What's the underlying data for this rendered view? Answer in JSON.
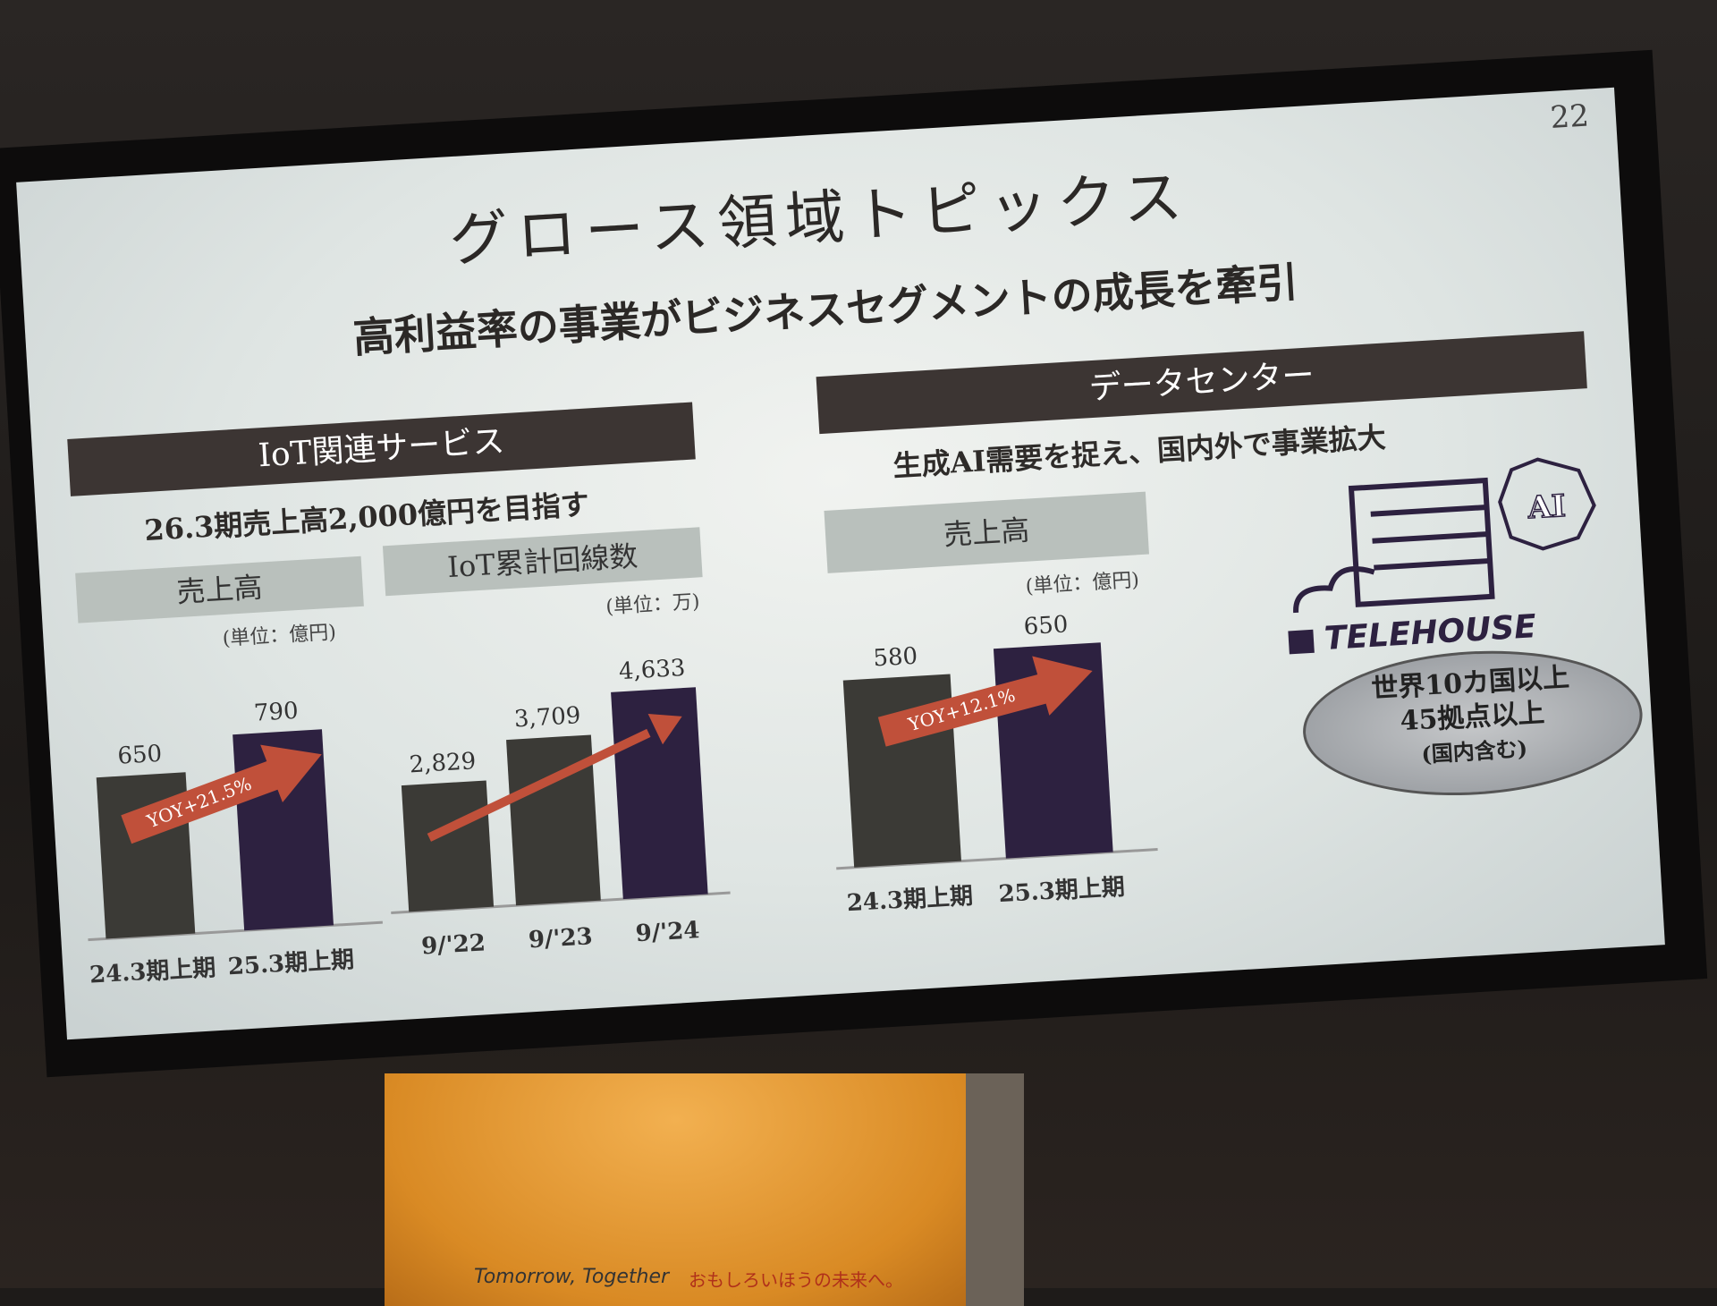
{
  "slide": {
    "page_number": "22",
    "title": "グロース領域トピックス",
    "subtitle": "高利益率の事業がビジネスセグメントの成長を牽引",
    "left": {
      "header": "IoT関連サービス",
      "target": "26.3期売上高2,000億円を目指す",
      "revenue_label": "売上高",
      "revenue_unit": "(単位：億円)",
      "lines_label": "IoT累計回線数",
      "lines_unit": "(単位：万)"
    },
    "right": {
      "header": "データセンター",
      "tagline": "生成AI需要を捉え、国内外で事業拡大",
      "revenue_label": "売上高",
      "revenue_unit": "(単位：億円)",
      "logo": "TELEHOUSE",
      "ai_badge": "AI",
      "globe_lines": [
        "世界10カ国以上",
        "45拠点以上",
        "(国内含む)"
      ]
    }
  },
  "podium": {
    "en": "Tomorrow, Together",
    "jp": "おもしろいほうの未来へ。"
  },
  "colors": {
    "bar_prev": "#3b3a36",
    "bar_current": "#2d2140",
    "arrow": "#c0503a",
    "header_bg": "#3c3533"
  },
  "chart_data": [
    {
      "type": "bar",
      "title": "売上高",
      "ylabel": "(単位：億円)",
      "categories": [
        "24.3期上期",
        "25.3期上期"
      ],
      "values": [
        650,
        790
      ],
      "annotation": "YOY+21.5%",
      "ylim": [
        0,
        900
      ]
    },
    {
      "type": "bar",
      "title": "IoT累計回線数",
      "ylabel": "(単位：万)",
      "categories": [
        "9/'22",
        "9/'23",
        "9/'24"
      ],
      "values": [
        2829,
        3709,
        4633
      ],
      "value_labels": [
        "2,829",
        "3,709",
        "4,633"
      ],
      "ylim": [
        0,
        5200
      ]
    },
    {
      "type": "bar",
      "title": "売上高",
      "ylabel": "(単位：億円)",
      "categories": [
        "24.3期上期",
        "25.3期上期"
      ],
      "values": [
        580,
        650
      ],
      "annotation": "YOY+12.1%",
      "ylim": [
        0,
        720
      ]
    }
  ]
}
